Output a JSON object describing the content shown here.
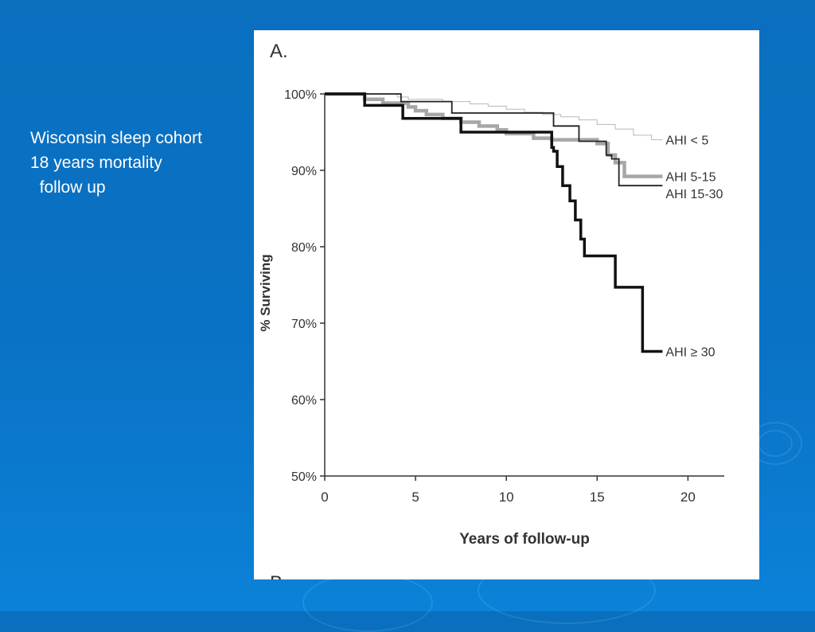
{
  "slide": {
    "lines": [
      "Wisconsin sleep cohort",
      "18 years mortality",
      "  follow up"
    ]
  },
  "chart_data": {
    "type": "line",
    "panel_label": "A.",
    "next_panel_label": "B.",
    "xlabel": "Years of follow-up",
    "ylabel": "% Surviving",
    "xlim": [
      0,
      22
    ],
    "ylim": [
      50,
      100
    ],
    "xticks": [
      0,
      5,
      10,
      15,
      20
    ],
    "xtick_labels": [
      "0",
      "5",
      "10",
      "15",
      "20"
    ],
    "yticks": [
      50,
      60,
      70,
      80,
      90,
      100
    ],
    "ytick_labels": [
      "50%",
      "60%",
      "70%",
      "80%",
      "90%",
      "100%"
    ],
    "step": true,
    "series": [
      {
        "name": "AHI < 5",
        "color": "#b8b8b8",
        "x": [
          0,
          4.0,
          4.6,
          6.5,
          8.0,
          9.0,
          10.0,
          11.0,
          12.0,
          13.0,
          14.0,
          15.0,
          16.0,
          17.0,
          18.0,
          18.6
        ],
        "y": [
          100,
          99.6,
          99.3,
          99.0,
          98.7,
          98.4,
          98.0,
          97.6,
          97.3,
          97.0,
          96.6,
          96.0,
          95.4,
          94.6,
          94.0,
          94.0
        ]
      },
      {
        "name": "AHI 5-15",
        "color": "#a7a7a7",
        "x": [
          0,
          2.2,
          3.2,
          4.6,
          5.0,
          5.6,
          6.5,
          7.5,
          8.5,
          9.5,
          10.0,
          11.5,
          12.5,
          13.0,
          14.0,
          15.0,
          15.6,
          16.0,
          16.5,
          18.6
        ],
        "y": [
          100,
          99.3,
          98.8,
          98.3,
          97.8,
          97.3,
          96.8,
          96.3,
          95.8,
          95.3,
          94.8,
          94.2,
          94.0,
          94.0,
          94.0,
          93.5,
          92.0,
          91.0,
          89.2,
          89.2
        ]
      },
      {
        "name": "AHI 15-30",
        "color": "#222222",
        "x": [
          0,
          4.2,
          7.0,
          12.6,
          14.0,
          15.5,
          15.8,
          16.2,
          16.5,
          18.6
        ],
        "y": [
          100,
          99.0,
          97.5,
          95.8,
          93.8,
          92.0,
          91.5,
          88.0,
          88.0,
          88.0
        ],
        "plot_y": [
          100,
          99.0,
          97.5,
          95.8,
          93.8,
          92.0,
          91.5,
          88.0,
          88.0,
          88.0
        ]
      },
      {
        "name": "AHI ≥ 30",
        "color": "#111111",
        "x": [
          0,
          2.2,
          4.3,
          7.5,
          12.5,
          12.6,
          12.8,
          13.1,
          13.5,
          13.8,
          14.1,
          14.3,
          16.0,
          17.5,
          18.6
        ],
        "y": [
          100,
          98.5,
          96.8,
          95.0,
          93.0,
          92.5,
          90.5,
          88.0,
          86.0,
          83.5,
          81.0,
          78.8,
          74.7,
          66.3,
          66.3
        ]
      }
    ]
  }
}
